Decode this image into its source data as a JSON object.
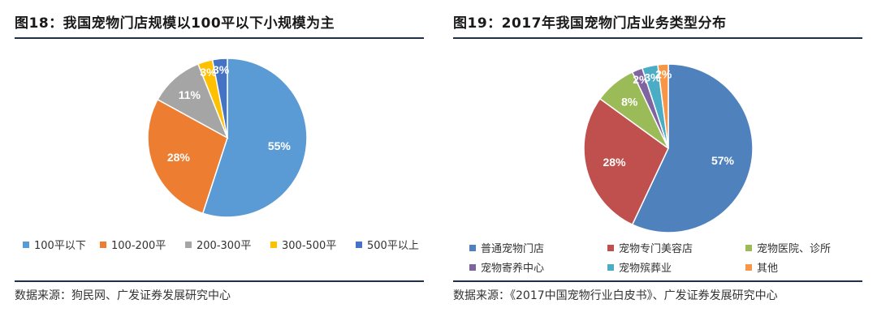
{
  "left": {
    "title": "图18：我国宠物门店规模以100平以下小规模为主",
    "source": "数据来源：狗民网、广发证券发展研究中心"
  },
  "right": {
    "title": "图19：2017年我国宠物门店业务类型分布",
    "source": "数据来源：《2017中国宠物行业白皮书》、广发证券发展研究中心"
  },
  "chart_data": [
    {
      "type": "pie",
      "title": "图18：我国宠物门店规模以100平以下小规模为主",
      "legend_position": "bottom",
      "slices": [
        {
          "label": "100平以下",
          "value": 55,
          "display": "55%",
          "color": "#5b9bd5"
        },
        {
          "label": "100-200平",
          "value": 28,
          "display": "28%",
          "color": "#ed7d31"
        },
        {
          "label": "200-300平",
          "value": 11,
          "display": "11%",
          "color": "#a5a5a5"
        },
        {
          "label": "300-500平",
          "value": 3,
          "display": "3%",
          "color": "#ffc000"
        },
        {
          "label": "500平以上",
          "value": 3,
          "display": "3%",
          "color": "#4472c4"
        }
      ]
    },
    {
      "type": "pie",
      "title": "图19：2017年我国宠物门店业务类型分布",
      "legend_position": "bottom",
      "slices": [
        {
          "label": "普通宠物门店",
          "value": 57,
          "display": "57%",
          "color": "#4f81bd"
        },
        {
          "label": "宠物专门美容店",
          "value": 28,
          "display": "28%",
          "color": "#c0504d"
        },
        {
          "label": "宠物医院、诊所",
          "value": 8,
          "display": "8%",
          "color": "#9bbb59"
        },
        {
          "label": "宠物寄养中心",
          "value": 2,
          "display": "2%",
          "color": "#8064a2"
        },
        {
          "label": "宠物殡葬业",
          "value": 3,
          "display": "3%",
          "color": "#4bacc6"
        },
        {
          "label": "其他",
          "value": 2,
          "display": "2%",
          "color": "#f79646"
        }
      ]
    }
  ]
}
